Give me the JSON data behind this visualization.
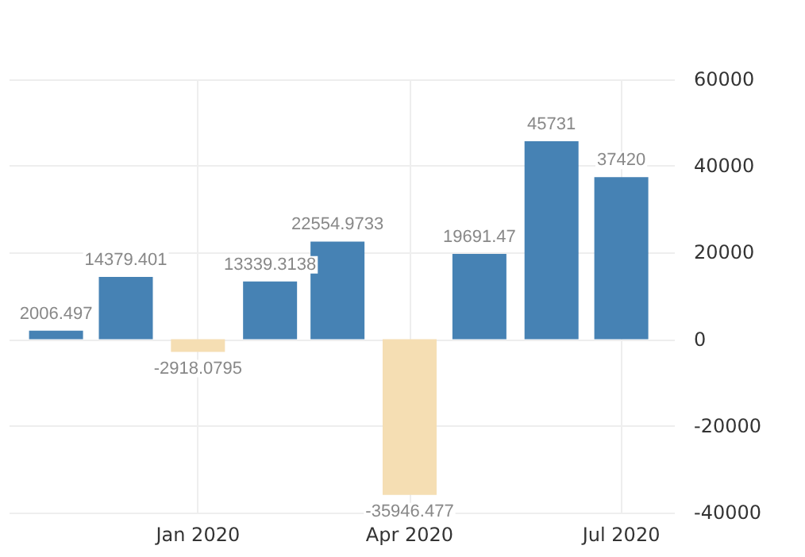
{
  "chart_data": {
    "type": "bar",
    "x": [
      "2019-11",
      "2019-12",
      "2020-01",
      "2020-02",
      "2020-03",
      "2020-04",
      "2020-05",
      "2020-06",
      "2020-07"
    ],
    "values": [
      2006.497,
      14379.401,
      -2918.0795,
      13339.3138,
      22554.9733,
      -35946.477,
      19691.47,
      45731,
      37420
    ],
    "colors": [
      "#4682b4",
      "#4682b4",
      "#f5deb3",
      "#4682b4",
      "#4682b4",
      "#f5deb3",
      "#4682b4",
      "#4682b4",
      "#4682b4"
    ],
    "data_labels": true,
    "xlim": [
      "2019-10-12",
      "2020-07-24"
    ],
    "xticks": [
      {
        "value": "2020-01",
        "label": "Jan 2020"
      },
      {
        "value": "2020-04",
        "label": "Apr 2020"
      },
      {
        "value": "2020-07",
        "label": "Jul 2020"
      }
    ],
    "ylim": [
      -40000,
      60000
    ],
    "yticks": [
      -40000,
      -20000,
      0,
      20000,
      40000,
      60000
    ],
    "grid": true
  }
}
